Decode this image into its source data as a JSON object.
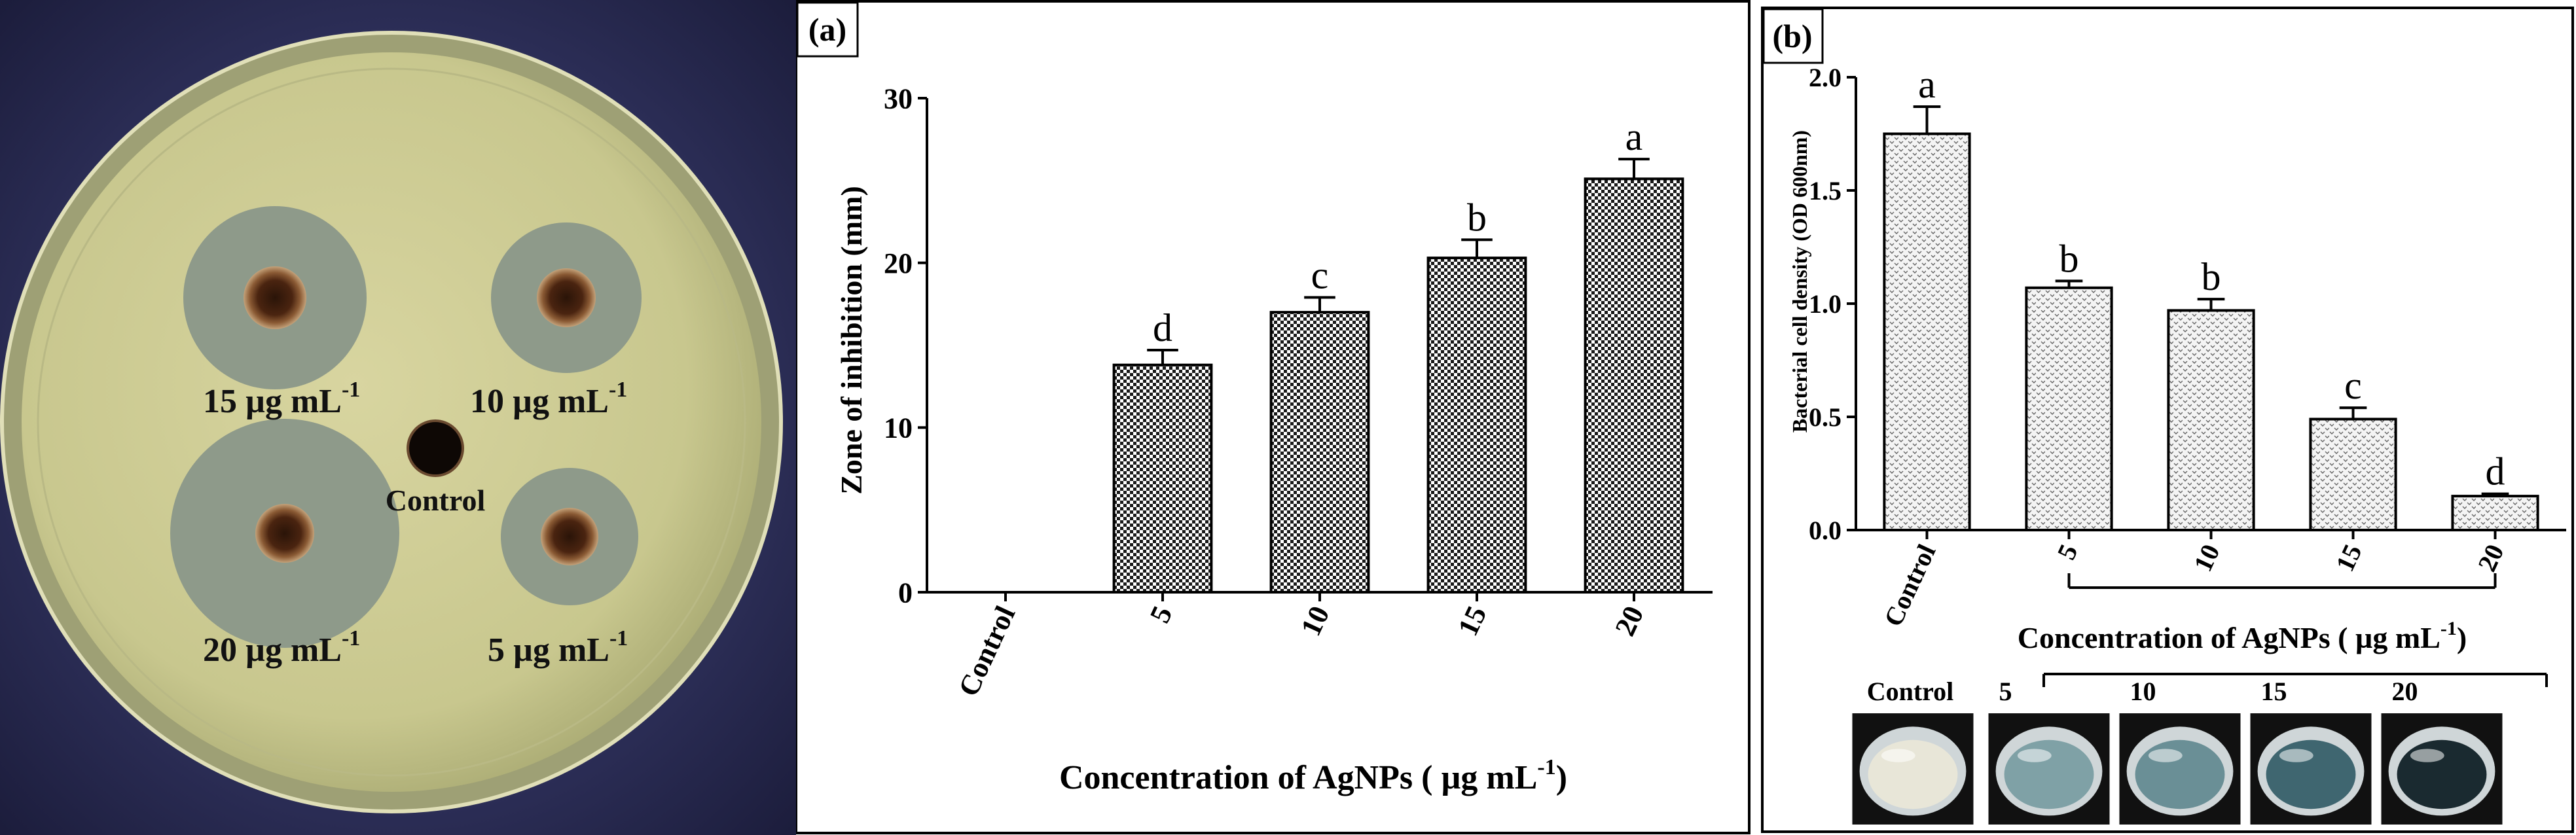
{
  "photo": {
    "wells": {
      "top_left": {
        "value": "15 µg mL",
        "exp": "-1"
      },
      "top_right": {
        "value": "10 µg mL",
        "exp": "-1"
      },
      "bottom_left": {
        "value": "20 µg mL",
        "exp": "-1"
      },
      "bottom_right": {
        "value": "5 µg mL",
        "exp": "-1"
      },
      "center": "Control"
    }
  },
  "chart_data": [
    {
      "panel": "(a)",
      "type": "bar",
      "categories": [
        "Control",
        "5",
        "10",
        "15",
        "20"
      ],
      "values": [
        0,
        13.8,
        17.0,
        20.3,
        25.1
      ],
      "errors": [
        0,
        0.9,
        0.9,
        1.1,
        1.2
      ],
      "letters": [
        "",
        "d",
        "c",
        "b",
        "a"
      ],
      "ylabel": "Zone of inhibition (mm)",
      "xlabel": "Concentration of AgNPs ( µg mL",
      "xlabel_exp": "-1",
      "xlabel_close": ")",
      "ylim": [
        0,
        30
      ],
      "yticks": [
        "0",
        "10",
        "20",
        "30"
      ],
      "fill_pattern": "checkerboard"
    },
    {
      "panel": "(b)",
      "type": "bar",
      "categories": [
        "Control",
        "5",
        "10",
        "15",
        "20"
      ],
      "values": [
        1.75,
        1.07,
        0.97,
        0.49,
        0.15
      ],
      "errors": [
        0.12,
        0.03,
        0.05,
        0.05,
        0.01
      ],
      "letters": [
        "a",
        "b",
        "b",
        "c",
        "d"
      ],
      "ylabel": "Bacterial cell density (OD 600nm)",
      "xlabel": "Concentration of AgNPs ( µg mL",
      "xlabel_exp": "-1",
      "xlabel_close": ")",
      "ylim": [
        0,
        2.0
      ],
      "yticks": [
        "0.0",
        "0.5",
        "1.0",
        "1.5",
        "2.0"
      ],
      "fill_pattern": "dotted",
      "well_labels": [
        "Control",
        "5",
        "10",
        "15",
        "20"
      ]
    }
  ]
}
